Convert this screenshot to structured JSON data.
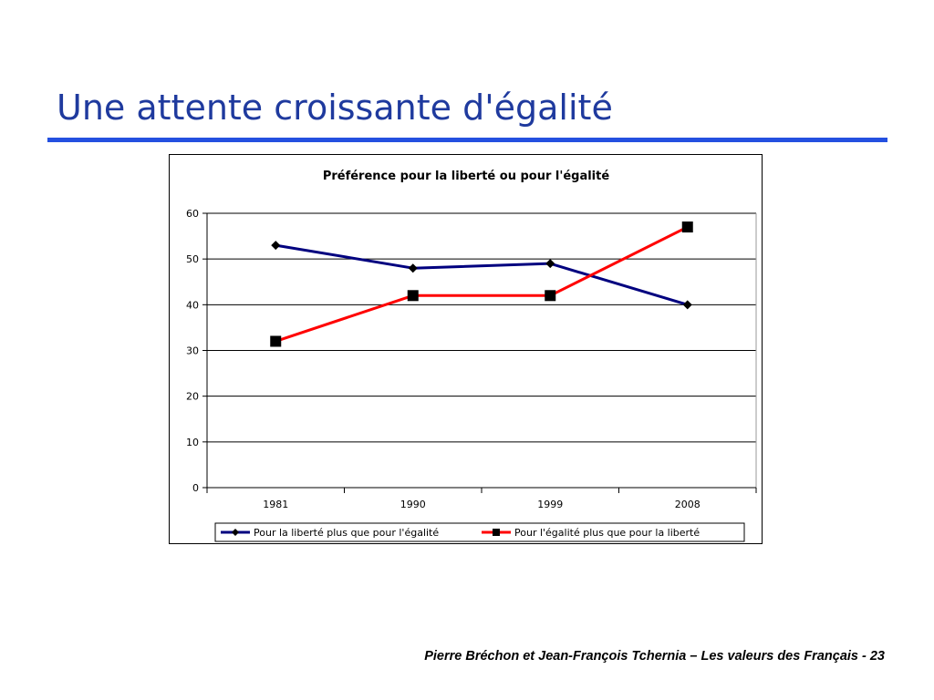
{
  "slide": {
    "title": "Une attente croissante d'égalité",
    "footer": "Pierre Bréchon et Jean-François Tchernia – Les valeurs des Français - 23",
    "accent_color": "#2450e0",
    "title_color": "#1f3a9e"
  },
  "chart_data": {
    "type": "line",
    "title": "Préférence pour la liberté ou pour l'égalité",
    "xlabel": "",
    "ylabel": "",
    "categories": [
      "1981",
      "1990",
      "1999",
      "2008"
    ],
    "ylim": [
      0,
      60
    ],
    "yticks": [
      0,
      10,
      20,
      30,
      40,
      50,
      60
    ],
    "grid": true,
    "legend_position": "bottom",
    "series": [
      {
        "name": "Pour la liberté plus que pour l'égalité",
        "values": [
          53,
          48,
          49,
          40
        ],
        "color": "#00007f",
        "marker": "diamond"
      },
      {
        "name": "Pour l'égalité plus que pour la liberté",
        "values": [
          32,
          42,
          42,
          57
        ],
        "color": "#ff0000",
        "marker": "square"
      }
    ]
  }
}
